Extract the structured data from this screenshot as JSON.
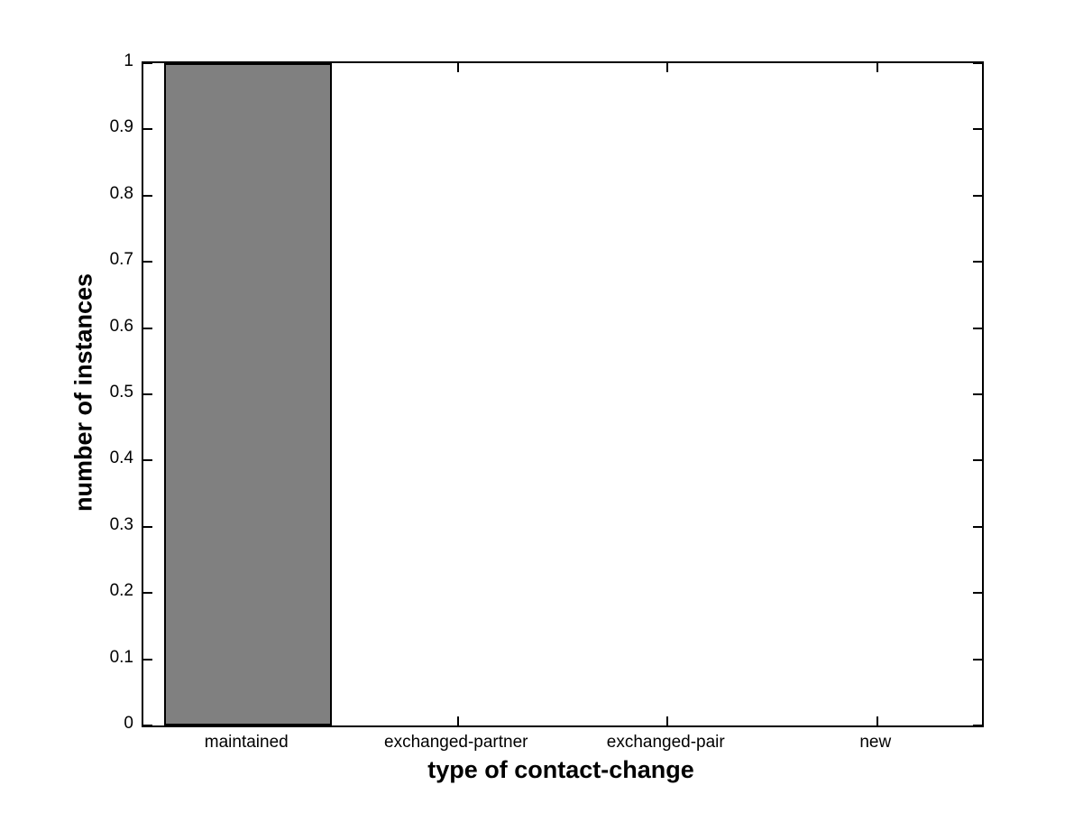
{
  "chart_data": {
    "type": "bar",
    "categories": [
      "maintained",
      "exchanged-partner",
      "exchanged-pair",
      "new"
    ],
    "values": [
      1,
      0,
      0,
      0
    ],
    "title": "",
    "xlabel": "type of contact-change",
    "ylabel": "number of instances",
    "ylim": [
      0,
      1
    ],
    "ytick_values": [
      0,
      0.1,
      0.2,
      0.3,
      0.4,
      0.5,
      0.6,
      0.7,
      0.8,
      0.9,
      1
    ],
    "ytick_labels": [
      "0",
      "0.1",
      "0.2",
      "0.3",
      "0.4",
      "0.5",
      "0.6",
      "0.7",
      "0.8",
      "0.9",
      "1"
    ],
    "bar_width_ratio": 0.8,
    "bar_color": "#808080",
    "bar_edge_color": "#000000",
    "axis_color": "#000000",
    "background_color": "#ffffff",
    "grid": false,
    "legend": null,
    "tick_direction": "in"
  }
}
